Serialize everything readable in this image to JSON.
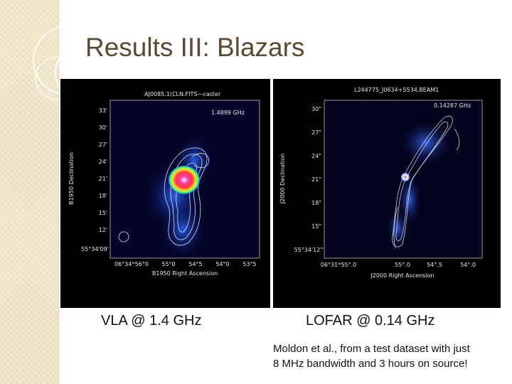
{
  "slide": {
    "title": "Results III: Blazars",
    "credit": [
      "Moldon et al., from a test dataset with just",
      "8 MHz bandwidth and 3 hours on source!"
    ]
  },
  "vla": {
    "caption": "VLA @ 1.4 GHz",
    "header": "AJ0085.1(CLN.FITS—caster",
    "frequency": "1.4899 GHz",
    "ylabel": "B1950 Declination",
    "xlabel": "B1950 Right Ascension",
    "yticks": [
      "33'",
      "30'",
      "27'",
      "24'",
      "21'",
      "18'",
      "15'",
      "12'",
      "55°34'09'"
    ],
    "xticks": [
      "06°34ᴹ56°0",
      "55°0",
      "54°5",
      "54°0",
      "53°5"
    ]
  },
  "lofar": {
    "caption": "LOFAR @ 0.14 GHz",
    "header": "L244775_J0634+5534,BEAM1",
    "frequency": "0.14287 GHz",
    "ylabel": "J2000 Declination",
    "xlabel": "J2000 Right Ascension",
    "yticks": [
      "30\"",
      "27\"",
      "24\"",
      "21\"",
      "18\"",
      "15\"",
      "55°34'12\""
    ],
    "xticks": [
      "06°31ᴹ55°.0",
      "55°.0",
      "54°.5",
      "54°.0"
    ]
  },
  "colors": {
    "title": "#5a4a32",
    "sidebar": "#f3ead0",
    "contour": "#ffffff",
    "bg": "#000000"
  }
}
